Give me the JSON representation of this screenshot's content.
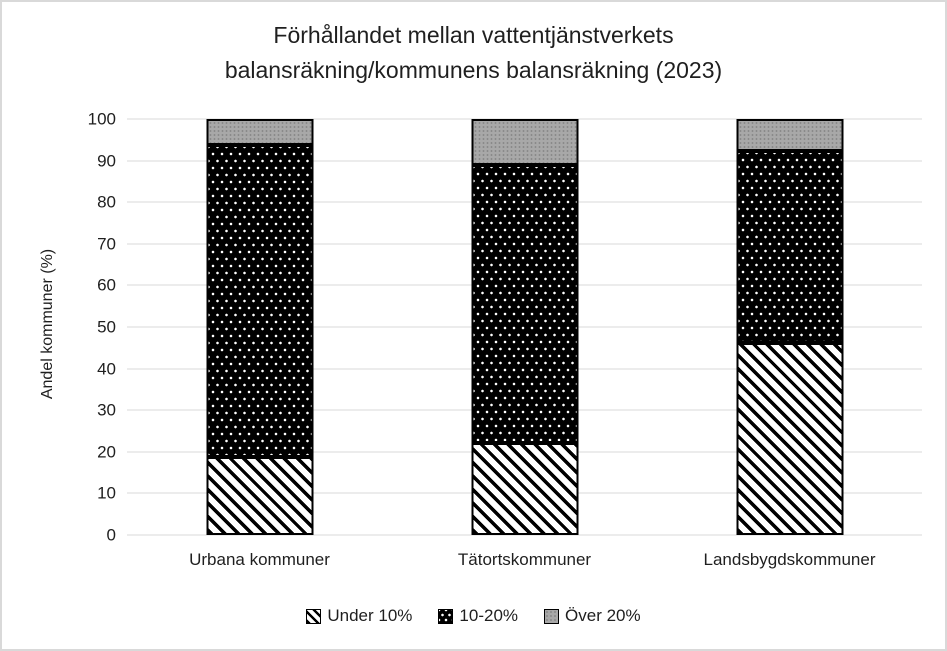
{
  "frame": {
    "background": "#ffffff",
    "border_color": "#d9d9d9"
  },
  "chart_data": {
    "type": "bar",
    "subtype": "stacked-column-100",
    "title_lines": [
      "Förhållandet mellan vattentjänstverkets",
      "balansräkning/kommunens balansräkning (2023)"
    ],
    "ylabel": "Andel kommuner (%)",
    "xlabel": "",
    "ylim": [
      0,
      100
    ],
    "yticks": [
      0,
      10,
      20,
      30,
      40,
      50,
      60,
      70,
      80,
      90,
      100
    ],
    "grid": "horizontal",
    "legend_position": "bottom",
    "categories": [
      "Urbana kommuner",
      "Tätortskommuner",
      "Landsbygdskommuner"
    ],
    "series": [
      {
        "name": "Under 10%",
        "pattern": "diagonal-hatch",
        "values": [
          18.8,
          22.2,
          46.2
        ]
      },
      {
        "name": "10-20%",
        "pattern": "white-dots-on-black",
        "values": [
          75.0,
          66.7,
          46.2
        ]
      },
      {
        "name": "Över 20%",
        "pattern": "solid-gray",
        "values": [
          6.2,
          11.1,
          7.6
        ]
      }
    ],
    "colors": {
      "hatch_foreground": "#000000",
      "hatch_background": "#ffffff",
      "dots_background": "#000000",
      "dots_foreground": "#ffffff",
      "gray_fill": "#a8a8a8",
      "gridline": "#d9d9d9",
      "text": "#1f1f1f"
    }
  }
}
